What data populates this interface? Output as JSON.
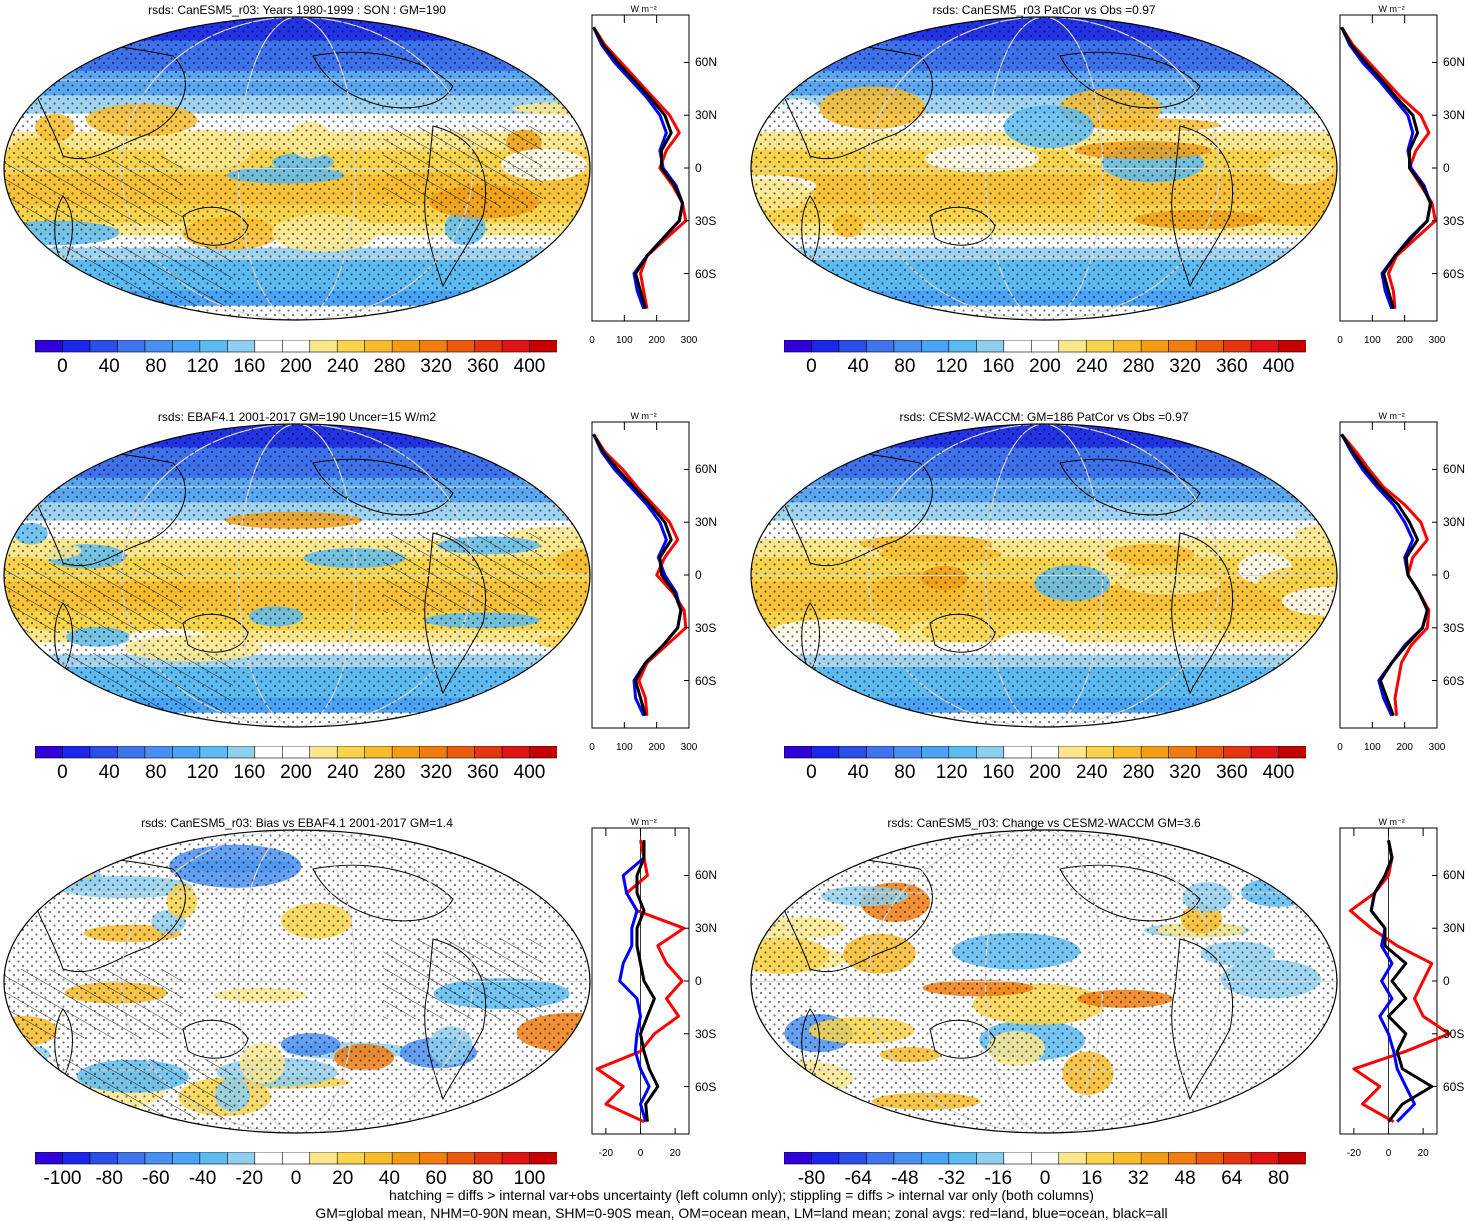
{
  "figure": {
    "variable": "rsds",
    "footnotes": [
      "hatching = diffs > internal var+obs uncertainty (left column only); stippling = diffs > internal var only (both columns)",
      "GM=global mean, NHM=0-90N mean, SHM=0-90S mean, OM=ocean mean, LM=land mean; zonal avgs: red=land, blue=ocean, black=all"
    ]
  },
  "chart_data": [
    {
      "type": "heatmap",
      "title": "rsds: CanESM5_r03: Years 1980-1999 : SON : GM=190",
      "colorbar": {
        "ticks": [
          "0",
          "40",
          "80",
          "120",
          "160",
          "200",
          "240",
          "280",
          "320",
          "360",
          "400"
        ],
        "range": [
          -20,
          420
        ]
      },
      "zonal": {
        "units": "W m⁻²",
        "xticks": [
          "0",
          "100",
          "200",
          "300"
        ],
        "xlim": [
          0,
          300
        ],
        "yticks": [
          "60N",
          "30N",
          "0",
          "30S",
          "60S"
        ],
        "series": [
          {
            "name": "land",
            "color": "#ff0000",
            "lat": [
              80,
              70,
              60,
              50,
              40,
              30,
              20,
              10,
              0,
              -10,
              -20,
              -30,
              -40,
              -50,
              -60,
              -70,
              -80
            ],
            "values": [
              5,
              40,
              90,
              140,
              190,
              240,
              270,
              230,
              210,
              250,
              280,
              290,
              230,
              170,
              150,
              160,
              170
            ]
          },
          {
            "name": "ocean",
            "color": "#0000ff",
            "lat": [
              80,
              70,
              60,
              50,
              40,
              30,
              20,
              10,
              0,
              -10,
              -20,
              -30,
              -40,
              -50,
              -60,
              -70,
              -80
            ],
            "values": [
              5,
              30,
              70,
              120,
              170,
              210,
              230,
              210,
              220,
              260,
              280,
              270,
              220,
              170,
              130,
              140,
              160
            ]
          },
          {
            "name": "all",
            "color": "#000000",
            "lat": [
              80,
              70,
              60,
              50,
              40,
              30,
              20,
              10,
              0,
              -10,
              -20,
              -30,
              -40,
              -50,
              -60,
              -70,
              -80
            ],
            "values": [
              5,
              35,
              80,
              130,
              180,
              225,
              245,
              215,
              215,
              255,
              280,
              270,
              220,
              170,
              135,
              150,
              165
            ]
          }
        ]
      }
    },
    {
      "type": "heatmap",
      "title": "rsds: CanESM5_r03 PatCor vs Obs =0.97",
      "colorbar": {
        "ticks": [
          "0",
          "40",
          "80",
          "120",
          "160",
          "200",
          "240",
          "280",
          "320",
          "360",
          "400"
        ],
        "range": [
          -20,
          420
        ]
      },
      "zonal": {
        "units": "W m⁻²",
        "xticks": [
          "0",
          "100",
          "200",
          "300"
        ],
        "xlim": [
          0,
          300
        ],
        "yticks": [
          "60N",
          "30N",
          "0",
          "30S",
          "60S"
        ],
        "series": [
          {
            "name": "land",
            "color": "#ff0000",
            "lat": [
              80,
              70,
              60,
              50,
              40,
              30,
              20,
              10,
              0,
              -10,
              -20,
              -30,
              -40,
              -50,
              -60,
              -70,
              -80
            ],
            "values": [
              5,
              40,
              90,
              140,
              190,
              250,
              275,
              235,
              215,
              250,
              285,
              295,
              235,
              175,
              150,
              165,
              170
            ]
          },
          {
            "name": "ocean",
            "color": "#0000ff",
            "lat": [
              80,
              70,
              60,
              50,
              40,
              30,
              20,
              10,
              0,
              -10,
              -20,
              -30,
              -40,
              -50,
              -60,
              -70,
              -80
            ],
            "values": [
              5,
              30,
              70,
              120,
              165,
              210,
              225,
              210,
              220,
              260,
              280,
              270,
              215,
              170,
              130,
              140,
              160
            ]
          },
          {
            "name": "all",
            "color": "#000000",
            "lat": [
              80,
              70,
              60,
              50,
              40,
              30,
              20,
              10,
              0,
              -10,
              -20,
              -30,
              -40,
              -50,
              -60,
              -70,
              -80
            ],
            "values": [
              5,
              35,
              80,
              130,
              175,
              225,
              240,
              215,
              215,
              255,
              280,
              270,
              220,
              170,
              135,
              150,
              165
            ]
          }
        ]
      }
    },
    {
      "type": "heatmap",
      "title": "rsds: EBAF4.1 2001-2017 GM=190 Uncer=15 W/m2",
      "colorbar": {
        "ticks": [
          "0",
          "40",
          "80",
          "120",
          "160",
          "200",
          "240",
          "280",
          "320",
          "360",
          "400"
        ],
        "range": [
          -20,
          420
        ]
      },
      "zonal": {
        "units": "W m⁻²",
        "xticks": [
          "0",
          "100",
          "200",
          "300"
        ],
        "xlim": [
          0,
          300
        ],
        "yticks": [
          "60N",
          "30N",
          "0",
          "30S",
          "60S"
        ],
        "series": [
          {
            "name": "land",
            "color": "#ff0000",
            "lat": [
              80,
              70,
              60,
              50,
              40,
              30,
              20,
              10,
              0,
              -10,
              -20,
              -30,
              -40,
              -50,
              -60,
              -70,
              -80
            ],
            "values": [
              5,
              40,
              95,
              140,
              190,
              240,
              265,
              225,
              200,
              250,
              285,
              290,
              230,
              170,
              145,
              165,
              170
            ]
          },
          {
            "name": "ocean",
            "color": "#0000ff",
            "lat": [
              80,
              70,
              60,
              50,
              40,
              30,
              20,
              10,
              0,
              -10,
              -20,
              -30,
              -40,
              -50,
              -60,
              -70,
              -80
            ],
            "values": [
              5,
              30,
              70,
              120,
              170,
              210,
              230,
              205,
              225,
              260,
              275,
              265,
              220,
              165,
              130,
              135,
              160
            ]
          },
          {
            "name": "all",
            "color": "#000000",
            "lat": [
              80,
              70,
              60,
              50,
              40,
              30,
              20,
              10,
              0,
              -10,
              -20,
              -30,
              -40,
              -50,
              -60,
              -70,
              -80
            ],
            "values": [
              5,
              35,
              80,
              130,
              180,
              225,
              245,
              210,
              215,
              255,
              275,
              265,
              220,
              165,
              135,
              150,
              165
            ]
          }
        ]
      }
    },
    {
      "type": "heatmap",
      "title": "rsds: CESM2-WACCM: GM=186 PatCor vs Obs =0.97",
      "colorbar": {
        "ticks": [
          "0",
          "40",
          "80",
          "120",
          "160",
          "200",
          "240",
          "280",
          "320",
          "360",
          "400"
        ],
        "range": [
          -20,
          420
        ]
      },
      "zonal": {
        "units": "W m⁻²",
        "xticks": [
          "0",
          "100",
          "200",
          "300"
        ],
        "xlim": [
          0,
          300
        ],
        "yticks": [
          "60N",
          "30N",
          "0",
          "30S",
          "60S"
        ],
        "series": [
          {
            "name": "land",
            "color": "#ff0000",
            "lat": [
              80,
              70,
              60,
              50,
              40,
              30,
              20,
              10,
              0,
              -10,
              -20,
              -30,
              -40,
              -50,
              -60,
              -70,
              -80
            ],
            "values": [
              5,
              50,
              90,
              135,
              200,
              250,
              270,
              225,
              210,
              245,
              275,
              270,
              220,
              190,
              180,
              170,
              175
            ]
          },
          {
            "name": "ocean",
            "color": "#0000ff",
            "lat": [
              80,
              70,
              60,
              50,
              40,
              30,
              20,
              10,
              0,
              -10,
              -20,
              -30,
              -40,
              -50,
              -60,
              -70,
              -80
            ],
            "values": [
              5,
              35,
              70,
              115,
              165,
              200,
              225,
              200,
              210,
              245,
              270,
              255,
              200,
              160,
              120,
              135,
              160
            ]
          },
          {
            "name": "all",
            "color": "#000000",
            "lat": [
              80,
              70,
              60,
              50,
              40,
              30,
              20,
              10,
              0,
              -10,
              -20,
              -30,
              -40,
              -50,
              -60,
              -70,
              -80
            ],
            "values": [
              5,
              40,
              80,
              125,
              180,
              215,
              240,
              205,
              210,
              245,
              270,
              255,
              205,
              160,
              125,
              145,
              165
            ]
          }
        ]
      }
    },
    {
      "type": "heatmap",
      "title": "rsds: CanESM5_r03: Bias vs EBAF4.1 2001-2017  GM=1.4",
      "colorbar": {
        "ticks": [
          "-100",
          "-80",
          "-60",
          "-40",
          "-20",
          "0",
          "20",
          "40",
          "60",
          "80",
          "100"
        ],
        "range": [
          -110,
          110
        ]
      },
      "zonal": {
        "units": "W m⁻²",
        "xticks": [
          "-20",
          "0",
          "20"
        ],
        "xlim": [
          -28,
          28
        ],
        "yticks": [
          "60N",
          "30N",
          "0",
          "30S",
          "60S"
        ],
        "series": [
          {
            "name": "land",
            "color": "#ff0000",
            "lat": [
              80,
              70,
              60,
              50,
              40,
              30,
              20,
              10,
              0,
              -10,
              -20,
              -30,
              -40,
              -50,
              -60,
              -70,
              -80
            ],
            "values": [
              0,
              2,
              4,
              -8,
              -2,
              25,
              10,
              15,
              24,
              15,
              22,
              8,
              0,
              -25,
              -10,
              -20,
              2
            ]
          },
          {
            "name": "ocean",
            "color": "#0000ff",
            "lat": [
              80,
              70,
              60,
              50,
              40,
              30,
              20,
              10,
              0,
              -10,
              -20,
              -30,
              -40,
              -50,
              -60,
              -70,
              -80
            ],
            "values": [
              2,
              2,
              -10,
              -8,
              -2,
              -5,
              -5,
              -10,
              -12,
              -2,
              0,
              -2,
              -3,
              0,
              5,
              0,
              3
            ]
          },
          {
            "name": "all",
            "color": "#000000",
            "lat": [
              80,
              70,
              60,
              50,
              40,
              30,
              20,
              10,
              0,
              -10,
              -20,
              -30,
              -40,
              -50,
              -60,
              -70,
              -80
            ],
            "values": [
              2,
              2,
              -2,
              -2,
              2,
              -2,
              -2,
              0,
              2,
              8,
              4,
              0,
              2,
              5,
              10,
              3,
              4
            ]
          }
        ]
      }
    },
    {
      "type": "heatmap",
      "title": "rsds: CanESM5_r03: Change vs CESM2-WACCM GM=3.6",
      "colorbar": {
        "ticks": [
          "-80",
          "-64",
          "-48",
          "-32",
          "-16",
          "0",
          "16",
          "32",
          "48",
          "64",
          "80"
        ],
        "range": [
          -88,
          88
        ]
      },
      "zonal": {
        "units": "W m⁻²",
        "xticks": [
          "-20",
          "0",
          "20"
        ],
        "xlim": [
          -28,
          28
        ],
        "yticks": [
          "60N",
          "30N",
          "0",
          "30S",
          "60S"
        ],
        "series": [
          {
            "name": "land",
            "color": "#ff0000",
            "lat": [
              80,
              70,
              60,
              50,
              40,
              30,
              20,
              10,
              0,
              -10,
              -20,
              -30,
              -40,
              -50,
              -60,
              -70,
              -80
            ],
            "values": [
              0,
              2,
              0,
              -8,
              -22,
              -10,
              5,
              25,
              20,
              15,
              20,
              35,
              10,
              -20,
              -5,
              -15,
              3
            ]
          },
          {
            "name": "ocean",
            "color": "#0000ff",
            "lat": [
              80,
              70,
              60,
              50,
              40,
              30,
              20,
              10,
              0,
              -10,
              -20,
              -30,
              -40,
              -50,
              -60,
              -70,
              -80
            ],
            "values": [
              0,
              2,
              -2,
              -8,
              -10,
              -2,
              -4,
              2,
              -4,
              2,
              -5,
              0,
              3,
              5,
              10,
              15,
              5
            ]
          },
          {
            "name": "all",
            "color": "#000000",
            "lat": [
              80,
              70,
              60,
              50,
              40,
              30,
              20,
              10,
              0,
              -10,
              -20,
              -30,
              -40,
              -50,
              -60,
              -70,
              -80
            ],
            "values": [
              0,
              2,
              -2,
              -8,
              -10,
              -2,
              -2,
              10,
              2,
              10,
              0,
              10,
              5,
              8,
              25,
              8,
              0
            ]
          }
        ]
      }
    }
  ]
}
